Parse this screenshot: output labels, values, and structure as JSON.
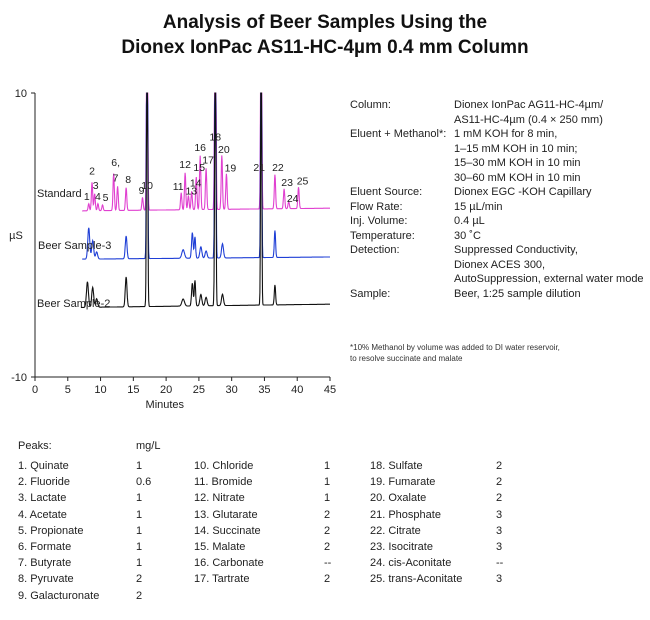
{
  "title": {
    "line1": "Analysis of Beer Samples Using the",
    "line2": "Dionex IonPac AS11-HC-4µm 0.4 mm Column"
  },
  "chart_data": {
    "type": "line",
    "xlabel": "Minutes",
    "ylabel": "µS",
    "xlim": [
      0,
      45
    ],
    "ylim": [
      -10,
      10
    ],
    "x_ticks": [
      0,
      5,
      10,
      15,
      20,
      25,
      30,
      35,
      40,
      45
    ],
    "y_tick_labels": {
      "top": "10",
      "bottom": "-10"
    },
    "grid": false,
    "traces": [
      {
        "name": "Standard",
        "color": "#e040d0",
        "baseline": 1.7,
        "peaks": [
          {
            "label": "1",
            "t": 8.2,
            "h": 0.5
          },
          {
            "label": "2",
            "t": 8.7,
            "h": 2.0
          },
          {
            "label": "3",
            "t": 9.1,
            "h": 1.2
          },
          {
            "label": "4",
            "t": 9.6,
            "h": 0.5
          },
          {
            "label": "5",
            "t": 10.3,
            "h": 0.4
          },
          {
            "label": "6,",
            "t": 12.0,
            "h": 2.6
          },
          {
            "label": "7",
            "t": 12.6,
            "h": 1.7
          },
          {
            "label": "8",
            "t": 13.9,
            "h": 1.6
          },
          {
            "label": "9",
            "t": 16.4,
            "h": 0.9
          },
          {
            "label": "10",
            "t": 17.1,
            "h": 0
          },
          {
            "label": "11",
            "t": 22.3,
            "h": 1.2
          },
          {
            "label": "12",
            "t": 22.9,
            "h": 2.6
          },
          {
            "label": "13",
            "t": 23.4,
            "h": 1.0
          },
          {
            "label": "14",
            "t": 23.9,
            "h": 1.3
          },
          {
            "label": "15",
            "t": 24.6,
            "h": 2.3
          },
          {
            "label": "16",
            "t": 25.2,
            "h": 3.8
          },
          {
            "label": "17",
            "t": 26.1,
            "h": 2.9
          },
          {
            "label": "18",
            "t": 27.5,
            "h": 4.6
          },
          {
            "label": "20",
            "t": 28.5,
            "h": 3.8
          },
          {
            "label": "19",
            "t": 29.2,
            "h": 2.5
          },
          {
            "label": "21",
            "t": 34.5,
            "h": 2.4
          },
          {
            "label": "22",
            "t": 36.6,
            "h": 2.4
          },
          {
            "label": "23",
            "t": 38.0,
            "h": 1.4
          },
          {
            "label": "24",
            "t": 38.7,
            "h": 0.5
          },
          {
            "label": "25",
            "t": 40.2,
            "h": 1.5
          }
        ]
      },
      {
        "name": "Beer Sample-3",
        "color": "#1f3fd6",
        "baseline": -1.7,
        "peaks": []
      },
      {
        "name": "Beer Sample-2",
        "color": "#111111",
        "baseline": -5.1,
        "peaks": []
      }
    ]
  },
  "conditions": [
    {
      "key": "Column:",
      "value": [
        "Dionex IonPac AG11-HC-4µm/",
        "AS11-HC-4µm (0.4 × 250 mm)"
      ]
    },
    {
      "key": "Eluent + Methanol*:",
      "value": [
        "1 mM KOH for 8 min,",
        "1–15 mM KOH in 10 min;",
        "15–30 mM KOH in 10 min",
        "30–60 mM KOH in 10 min"
      ]
    },
    {
      "key": "Eluent Source:",
      "value": [
        "Dionex EGC -KOH Capillary"
      ]
    },
    {
      "key": "Flow Rate:",
      "value": [
        "15 µL/min"
      ]
    },
    {
      "key": "Inj. Volume:",
      "value": [
        "0.4 µL"
      ]
    },
    {
      "key": "Temperature:",
      "value": [
        "30 ˚C"
      ]
    },
    {
      "key": "Detection:",
      "value": [
        "Suppressed Conductivity,",
        "Dionex ACES 300,",
        "AutoSuppression, external water mode"
      ]
    },
    {
      "key": "Sample:",
      "value": [
        "Beer, 1:25 sample dilution"
      ]
    }
  ],
  "footnote": [
    "*10% Methanol by volume was added to DI water reservoir,",
    "to resolve succinate and malate"
  ],
  "peaks_table": {
    "header": "Peaks:",
    "unit": "mg/L",
    "columns": [
      [
        {
          "name": "1. Quinate",
          "conc": "1"
        },
        {
          "name": "2. Fluoride",
          "conc": "0.6"
        },
        {
          "name": "3. Lactate",
          "conc": "1"
        },
        {
          "name": "4. Acetate",
          "conc": "1"
        },
        {
          "name": "5. Propionate",
          "conc": "1"
        },
        {
          "name": "6. Formate",
          "conc": "1"
        },
        {
          "name": "7. Butyrate",
          "conc": "1"
        },
        {
          "name": "8. Pyruvate",
          "conc": "2"
        },
        {
          "name": "9. Galacturonate",
          "conc": "2"
        }
      ],
      [
        {
          "name": "10. Chloride",
          "conc": "1"
        },
        {
          "name": "11. Bromide",
          "conc": "1"
        },
        {
          "name": "12. Nitrate",
          "conc": "1"
        },
        {
          "name": "13. Glutarate",
          "conc": "2"
        },
        {
          "name": "14. Succinate",
          "conc": "2"
        },
        {
          "name": "15. Malate",
          "conc": "2"
        },
        {
          "name": "16. Carbonate",
          "conc": "--"
        },
        {
          "name": "17. Tartrate",
          "conc": "2"
        }
      ],
      [
        {
          "name": "18. Sulfate",
          "conc": "2"
        },
        {
          "name": "19. Fumarate",
          "conc": "2"
        },
        {
          "name": "20. Oxalate",
          "conc": "2"
        },
        {
          "name": "21. Phosphate",
          "conc": "3"
        },
        {
          "name": "22. Citrate",
          "conc": "3"
        },
        {
          "name": "23. Isocitrate",
          "conc": "3"
        },
        {
          "name": "24. cis-Aconitate",
          "conc": "--"
        },
        {
          "name": "25. trans-Aconitate",
          "conc": "3"
        }
      ]
    ]
  }
}
